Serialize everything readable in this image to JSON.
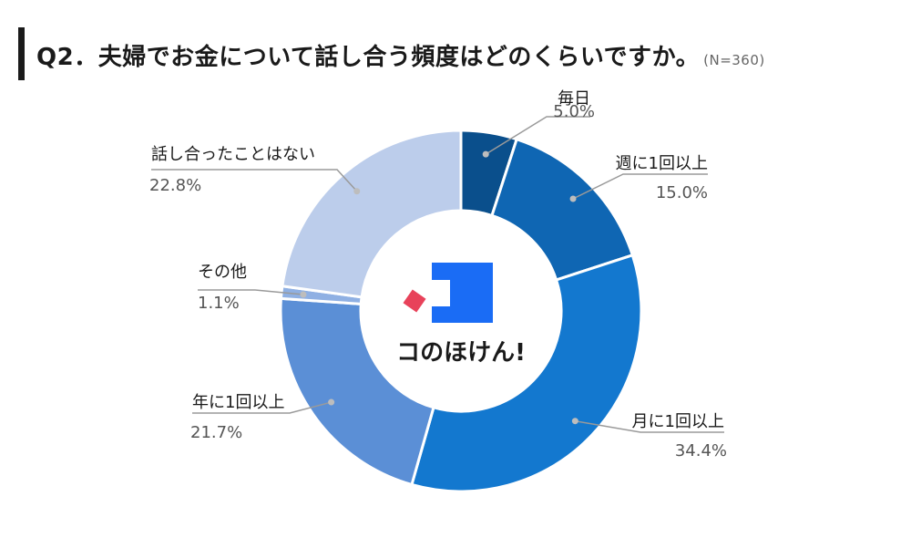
{
  "title": {
    "text": "Q2．夫婦でお金について話し合う頻度はどのくらいですか。",
    "sample": "(N=360)"
  },
  "brand": {
    "name": "コのほけん!",
    "colors": {
      "red": "#e8425a",
      "blue": "#1a6cf5"
    }
  },
  "chart_data": {
    "type": "pie",
    "donut": true,
    "title": "Q2．夫婦でお金について話し合う頻度はどのくらいですか。",
    "slices": [
      {
        "label": "毎日",
        "value": 5.0,
        "display": "5.0%",
        "color": "#0a4f8c"
      },
      {
        "label": "週に1回以上",
        "value": 15.0,
        "display": "15.0%",
        "color": "#0f66b3"
      },
      {
        "label": "月に1回以上",
        "value": 34.4,
        "display": "34.4%",
        "color": "#1378cf"
      },
      {
        "label": "年に1回以上",
        "value": 21.7,
        "display": "21.7%",
        "color": "#5b8fd6"
      },
      {
        "label": "その他",
        "value": 1.1,
        "display": "1.1%",
        "color": "#8fb0e3"
      },
      {
        "label": "話し合ったことはない",
        "value": 22.8,
        "display": "22.8%",
        "color": "#bccdeb"
      }
    ]
  }
}
